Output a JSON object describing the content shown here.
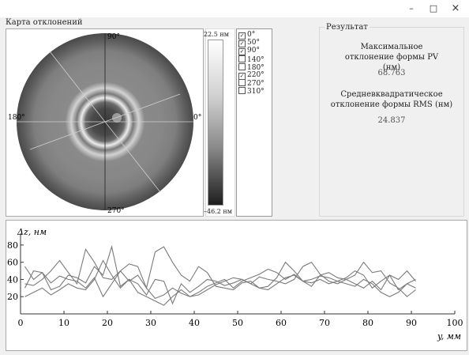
{
  "window": {
    "minimize_glyph": "–",
    "maximize_glyph": "□",
    "close_glyph": "×"
  },
  "deviation_map": {
    "title": "Карта отклонений",
    "angle_labels": {
      "top": "90°",
      "bottom": "270°",
      "left": "180°",
      "right": "0°"
    }
  },
  "scale": {
    "max_label": "22.5 нм",
    "min_label": "–46.2 нм"
  },
  "angles": [
    {
      "label": "0°",
      "checked": true
    },
    {
      "label": "50°",
      "checked": true
    },
    {
      "label": "90°",
      "checked": true
    },
    {
      "label": "140°",
      "checked": false
    },
    {
      "label": "180°",
      "checked": false
    },
    {
      "label": "220°",
      "checked": true
    },
    {
      "label": "270°",
      "checked": false
    },
    {
      "label": "310°",
      "checked": false
    }
  ],
  "result": {
    "title": "Результат",
    "pv_label": "Максимальное отклонение формы PV (нм)",
    "pv_value": "68.763",
    "rms_label": "Средневквадратическое отклонение формы RMS (нм)",
    "rms_value": "24.837"
  },
  "chart_data": {
    "type": "line",
    "ylabel": "Δz, нм",
    "xlabel": "y, мм",
    "xlim": [
      0,
      100
    ],
    "ylim": [
      0,
      90
    ],
    "x_ticks": [
      0,
      10,
      20,
      30,
      40,
      50,
      60,
      70,
      80,
      90,
      100
    ],
    "y_ticks": [
      20,
      40,
      60,
      80
    ],
    "grid": false,
    "color": "#7a7a7a",
    "series": [
      {
        "x": [
          1,
          3,
          5,
          7,
          9,
          11,
          13,
          15,
          17,
          19,
          21,
          23,
          25,
          27,
          29,
          31,
          33,
          35,
          37,
          39,
          41,
          43,
          45,
          47,
          49,
          51,
          53,
          55,
          57,
          59,
          61,
          63,
          65,
          67,
          69,
          71,
          73,
          75,
          77,
          79,
          81,
          83,
          85,
          87,
          89,
          91
        ],
        "values": [
          30,
          50,
          48,
          28,
          32,
          45,
          42,
          36,
          55,
          45,
          78,
          32,
          40,
          35,
          22,
          40,
          38,
          12,
          35,
          25,
          32,
          40,
          38,
          33,
          36,
          40,
          35,
          43,
          40,
          38,
          35,
          40,
          55,
          60,
          46,
          38,
          35,
          40,
          45,
          60,
          48,
          50,
          36,
          30,
          20,
          28
        ]
      },
      {
        "x": [
          1,
          3,
          5,
          7,
          9,
          11,
          13,
          15,
          17,
          19,
          21,
          23,
          25,
          27,
          29,
          31,
          33,
          35,
          37,
          39,
          41,
          43,
          45,
          47,
          49,
          51,
          53,
          55,
          57,
          59,
          61,
          63,
          65,
          67,
          69,
          71,
          73,
          75,
          77,
          79,
          81,
          83,
          85,
          87,
          89,
          91
        ],
        "values": [
          35,
          33,
          40,
          50,
          62,
          48,
          35,
          75,
          60,
          42,
          40,
          50,
          58,
          55,
          30,
          72,
          78,
          60,
          45,
          38,
          55,
          48,
          32,
          30,
          28,
          36,
          38,
          30,
          32,
          42,
          60,
          50,
          38,
          36,
          40,
          35,
          38,
          42,
          50,
          45,
          30,
          38,
          45,
          28,
          35,
          40
        ]
      },
      {
        "x": [
          1,
          3,
          5,
          7,
          9,
          11,
          13,
          15,
          17,
          19,
          21,
          23,
          25,
          27,
          29,
          31,
          33,
          35,
          37,
          39,
          41,
          43,
          45,
          47,
          49,
          51,
          53,
          55,
          57,
          59,
          61,
          63,
          65,
          67,
          69,
          71,
          73,
          75,
          77,
          79,
          81,
          83,
          85,
          87,
          89,
          91
        ],
        "values": [
          55,
          40,
          48,
          36,
          44,
          40,
          38,
          30,
          42,
          20,
          35,
          50,
          38,
          45,
          30,
          18,
          22,
          30,
          24,
          20,
          25,
          32,
          36,
          40,
          30,
          38,
          42,
          46,
          52,
          48,
          40,
          46,
          38,
          32,
          45,
          48,
          42,
          40,
          35,
          30,
          38,
          28,
          45,
          40,
          50,
          38
        ]
      },
      {
        "x": [
          1,
          3,
          5,
          7,
          9,
          11,
          13,
          15,
          17,
          19,
          21,
          23,
          25,
          27,
          29,
          31,
          33,
          35,
          37,
          39,
          41,
          43,
          45,
          47,
          49,
          51,
          53,
          55,
          57,
          59,
          61,
          63,
          65,
          67,
          69,
          71,
          73,
          75,
          77,
          79,
          81,
          83,
          85,
          87,
          89,
          91
        ],
        "values": [
          20,
          25,
          30,
          22,
          28,
          35,
          30,
          28,
          40,
          62,
          45,
          30,
          40,
          25,
          20,
          15,
          10,
          20,
          28,
          20,
          22,
          28,
          34,
          38,
          42,
          40,
          35,
          30,
          28,
          35,
          42,
          45,
          38,
          40,
          44,
          42,
          38,
          35,
          32,
          40,
          35,
          25,
          20,
          25,
          35,
          30
        ]
      }
    ]
  }
}
